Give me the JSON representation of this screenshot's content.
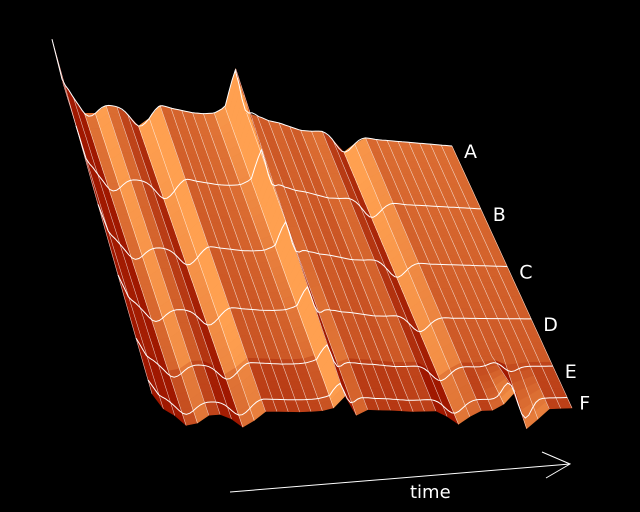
{
  "chart_data": {
    "type": "surface",
    "xlabel": "time",
    "row_labels": [
      "A",
      "B",
      "C",
      "D",
      "E",
      "F"
    ],
    "colors": {
      "background": "#000000",
      "surface_light": "#ffa050",
      "surface_dark": "#a01800",
      "mesh_line": "#ffffff"
    },
    "ridge_profile": [
      0.88,
      0.58,
      0.5,
      0.48,
      0.46,
      0.45,
      0.44,
      0.43,
      0.43,
      0.44,
      0.48,
      0.46,
      0.45,
      0.44,
      0.44,
      0.45,
      0.5,
      0.82,
      0.58,
      0.46,
      0.43,
      0.42,
      0.4,
      0.38,
      0.38,
      0.39,
      0.38,
      0.37,
      0.37,
      0.37,
      0.36,
      0.36,
      0.36,
      0.36,
      0.36,
      0.36,
      0.36,
      0.36
    ]
  }
}
